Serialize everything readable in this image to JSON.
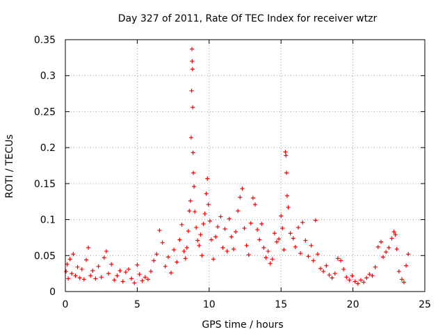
{
  "chart_data": {
    "type": "scatter",
    "title": "Day 327 of 2011, Rate Of TEC Index for receiver wtzr",
    "xlabel": "GPS time / hours",
    "ylabel": "ROTI / TECUs",
    "xlim": [
      0,
      25
    ],
    "ylim": [
      0,
      0.35
    ],
    "x_ticks": [
      "0",
      "5",
      "10",
      "15",
      "20",
      "25"
    ],
    "y_ticks": [
      "0",
      "0.05",
      "0.1",
      "0.15",
      "0.2",
      "0.25",
      "0.3",
      "0.35"
    ],
    "grid": true,
    "marker": "plus",
    "series": [
      {
        "color": "#ff0000",
        "points": [
          [
            0.05,
            0.028
          ],
          [
            0.12,
            0.038
          ],
          [
            0.2,
            0.018
          ],
          [
            0.32,
            0.045
          ],
          [
            0.45,
            0.025
          ],
          [
            0.55,
            0.052
          ],
          [
            0.7,
            0.022
          ],
          [
            0.85,
            0.034
          ],
          [
            1.0,
            0.019
          ],
          [
            1.15,
            0.031
          ],
          [
            1.3,
            0.017
          ],
          [
            1.45,
            0.044
          ],
          [
            1.6,
            0.061
          ],
          [
            1.75,
            0.022
          ],
          [
            1.9,
            0.029
          ],
          [
            2.1,
            0.018
          ],
          [
            2.3,
            0.035
          ],
          [
            2.5,
            0.02
          ],
          [
            2.7,
            0.047
          ],
          [
            2.85,
            0.056
          ],
          [
            3.0,
            0.025
          ],
          [
            3.2,
            0.038
          ],
          [
            3.4,
            0.016
          ],
          [
            3.6,
            0.022
          ],
          [
            3.8,
            0.029
          ],
          [
            4.0,
            0.014
          ],
          [
            4.2,
            0.027
          ],
          [
            4.4,
            0.031
          ],
          [
            4.6,
            0.018
          ],
          [
            4.8,
            0.012
          ],
          [
            5.0,
            0.037
          ],
          [
            5.15,
            0.024
          ],
          [
            5.35,
            0.015
          ],
          [
            5.55,
            0.02
          ],
          [
            5.75,
            0.017
          ],
          [
            5.95,
            0.028
          ],
          [
            6.15,
            0.043
          ],
          [
            6.35,
            0.052
          ],
          [
            6.55,
            0.085
          ],
          [
            6.75,
            0.068
          ],
          [
            6.95,
            0.035
          ],
          [
            7.15,
            0.048
          ],
          [
            7.35,
            0.026
          ],
          [
            7.55,
            0.058
          ],
          [
            7.75,
            0.041
          ],
          [
            7.95,
            0.072
          ],
          [
            8.1,
            0.093
          ],
          [
            8.25,
            0.056
          ],
          [
            8.35,
            0.046
          ],
          [
            8.45,
            0.061
          ],
          [
            8.55,
            0.084
          ],
          [
            8.62,
            0.112
          ],
          [
            8.7,
            0.126
          ],
          [
            8.75,
            0.214
          ],
          [
            8.78,
            0.279
          ],
          [
            8.8,
            0.337
          ],
          [
            8.82,
            0.32
          ],
          [
            8.84,
            0.309
          ],
          [
            8.86,
            0.256
          ],
          [
            8.88,
            0.193
          ],
          [
            8.9,
            0.165
          ],
          [
            8.95,
            0.146
          ],
          [
            9.0,
            0.111
          ],
          [
            9.1,
            0.089
          ],
          [
            9.2,
            0.071
          ],
          [
            9.3,
            0.064
          ],
          [
            9.4,
            0.079
          ],
          [
            9.5,
            0.05
          ],
          [
            9.6,
            0.094
          ],
          [
            9.7,
            0.108
          ],
          [
            9.8,
            0.136
          ],
          [
            9.88,
            0.157
          ],
          [
            9.95,
            0.121
          ],
          [
            10.05,
            0.098
          ],
          [
            10.15,
            0.072
          ],
          [
            10.3,
            0.045
          ],
          [
            10.45,
            0.076
          ],
          [
            10.6,
            0.09
          ],
          [
            10.8,
            0.104
          ],
          [
            10.95,
            0.061
          ],
          [
            11.1,
            0.087
          ],
          [
            11.25,
            0.056
          ],
          [
            11.4,
            0.101
          ],
          [
            11.55,
            0.076
          ],
          [
            11.7,
            0.059
          ],
          [
            11.85,
            0.083
          ],
          [
            12.0,
            0.112
          ],
          [
            12.15,
            0.131
          ],
          [
            12.3,
            0.143
          ],
          [
            12.45,
            0.088
          ],
          [
            12.6,
            0.064
          ],
          [
            12.75,
            0.051
          ],
          [
            12.9,
            0.095
          ],
          [
            13.05,
            0.13
          ],
          [
            13.2,
            0.121
          ],
          [
            13.35,
            0.086
          ],
          [
            13.5,
            0.072
          ],
          [
            13.65,
            0.094
          ],
          [
            13.8,
            0.061
          ],
          [
            13.95,
            0.047
          ],
          [
            14.1,
            0.056
          ],
          [
            14.25,
            0.039
          ],
          [
            14.4,
            0.045
          ],
          [
            14.55,
            0.081
          ],
          [
            14.7,
            0.069
          ],
          [
            14.85,
            0.073
          ],
          [
            15.0,
            0.105
          ],
          [
            15.1,
            0.088
          ],
          [
            15.2,
            0.058
          ],
          [
            15.3,
            0.194
          ],
          [
            15.34,
            0.189
          ],
          [
            15.38,
            0.165
          ],
          [
            15.42,
            0.133
          ],
          [
            15.5,
            0.117
          ],
          [
            15.65,
            0.081
          ],
          [
            15.85,
            0.074
          ],
          [
            16.0,
            0.062
          ],
          [
            16.2,
            0.089
          ],
          [
            16.35,
            0.053
          ],
          [
            16.5,
            0.096
          ],
          [
            16.7,
            0.071
          ],
          [
            16.9,
            0.049
          ],
          [
            17.1,
            0.064
          ],
          [
            17.25,
            0.043
          ],
          [
            17.4,
            0.099
          ],
          [
            17.55,
            0.052
          ],
          [
            17.75,
            0.032
          ],
          [
            17.95,
            0.028
          ],
          [
            18.15,
            0.036
          ],
          [
            18.35,
            0.023
          ],
          [
            18.55,
            0.019
          ],
          [
            18.75,
            0.025
          ],
          [
            18.95,
            0.046
          ],
          [
            19.15,
            0.043
          ],
          [
            19.35,
            0.031
          ],
          [
            19.55,
            0.02
          ],
          [
            19.75,
            0.016
          ],
          [
            19.95,
            0.022
          ],
          [
            20.15,
            0.014
          ],
          [
            20.35,
            0.011
          ],
          [
            20.55,
            0.016
          ],
          [
            20.75,
            0.013
          ],
          [
            20.95,
            0.019
          ],
          [
            21.15,
            0.024
          ],
          [
            21.35,
            0.022
          ],
          [
            21.55,
            0.034
          ],
          [
            21.75,
            0.062
          ],
          [
            21.95,
            0.069
          ],
          [
            22.1,
            0.048
          ],
          [
            22.3,
            0.055
          ],
          [
            22.5,
            0.061
          ],
          [
            22.7,
            0.074
          ],
          [
            22.85,
            0.083
          ],
          [
            22.95,
            0.079
          ],
          [
            23.05,
            0.059
          ],
          [
            23.2,
            0.028
          ],
          [
            23.4,
            0.017
          ],
          [
            23.55,
            0.013
          ],
          [
            23.7,
            0.036
          ],
          [
            23.85,
            0.052
          ]
        ]
      }
    ]
  }
}
